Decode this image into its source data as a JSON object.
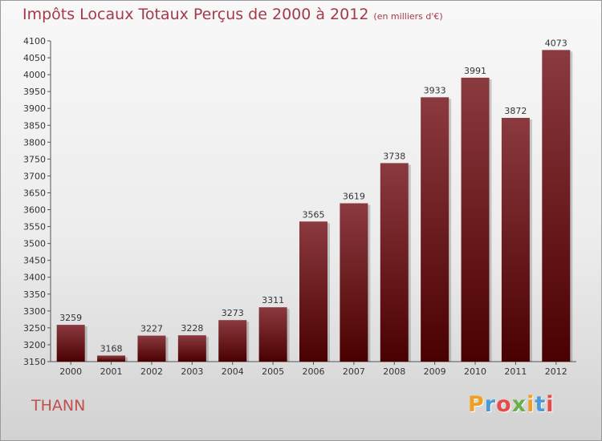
{
  "header": {
    "title": "Impôts Locaux Totaux Perçus de 2000 à 2012",
    "unit_note": "(en milliers d'€)"
  },
  "location": "THANN",
  "brand": {
    "name": "Proxiti",
    "letters": [
      "P",
      "r",
      "o",
      "x",
      "i",
      "t",
      "i"
    ]
  },
  "colors": {
    "bar_top": "#8b3a3f",
    "bar_bottom": "#4a0000",
    "title": "#a33a4a"
  },
  "chart_data": {
    "type": "bar",
    "title": "Impôts Locaux Totaux Perçus de 2000 à 2012",
    "xlabel": "",
    "ylabel": "",
    "categories": [
      "2000",
      "2001",
      "2002",
      "2003",
      "2004",
      "2005",
      "2006",
      "2007",
      "2008",
      "2009",
      "2010",
      "2011",
      "2012"
    ],
    "values": [
      3259,
      3168,
      3227,
      3228,
      3273,
      3311,
      3565,
      3619,
      3738,
      3933,
      3991,
      3872,
      4073
    ],
    "ylim": [
      3150,
      4100
    ],
    "ytick_step": 50,
    "grid": false,
    "data_labels": true
  }
}
